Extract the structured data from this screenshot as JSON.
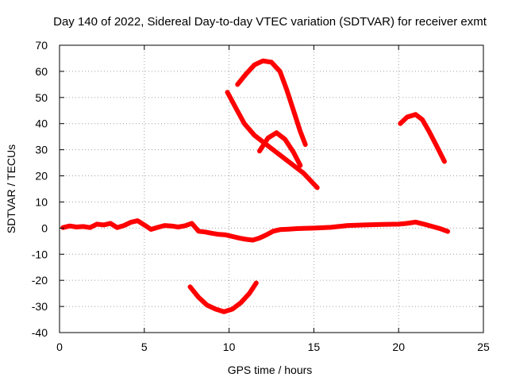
{
  "chart_data": {
    "type": "line",
    "title": "Day 140 of 2022, Sidereal Day-to-day VTEC variation (SDTVAR) for receiver exmt",
    "xlabel": "GPS time / hours",
    "ylabel": "SDTVAR / TECUs",
    "xlim": [
      0,
      25
    ],
    "ylim": [
      -40,
      70
    ],
    "xticks": [
      0,
      5,
      10,
      15,
      20,
      25
    ],
    "yticks": [
      -40,
      -30,
      -20,
      -10,
      0,
      10,
      20,
      30,
      40,
      50,
      60,
      70
    ],
    "grid": true,
    "series_color": "#ff0000",
    "series": [
      {
        "name": "baseline",
        "x": [
          0.2,
          0.6,
          1.0,
          1.4,
          1.8,
          2.2,
          2.6,
          3.0,
          3.4,
          3.8,
          4.2,
          4.6,
          5.0,
          5.4,
          5.8,
          6.2,
          6.6,
          7.0,
          7.4,
          7.8,
          8.2,
          8.6,
          9.0,
          9.4,
          9.8,
          10.2,
          10.6,
          11.0,
          11.4,
          11.8,
          12.2,
          12.6,
          13.0,
          13.5,
          14.0,
          15.0,
          16.0,
          17.0,
          18.0,
          19.0,
          20.0,
          20.5,
          21.0,
          21.5,
          22.0,
          22.5,
          22.9
        ],
        "y": [
          0.2,
          0.8,
          0.4,
          0.6,
          0.2,
          1.5,
          1.2,
          1.8,
          0.2,
          1.0,
          2.2,
          2.8,
          1.2,
          -0.5,
          0.3,
          1.0,
          0.8,
          0.4,
          0.9,
          1.8,
          -1.2,
          -1.5,
          -2.0,
          -2.4,
          -2.6,
          -3.2,
          -3.8,
          -4.3,
          -4.6,
          -3.8,
          -2.6,
          -1.2,
          -0.6,
          -0.4,
          -0.2,
          0.0,
          0.3,
          1.0,
          1.2,
          1.4,
          1.5,
          1.8,
          2.3,
          1.5,
          0.6,
          -0.3,
          -1.3
        ]
      },
      {
        "name": "arc-top",
        "x": [
          10.5,
          11.0,
          11.5,
          12.0,
          12.5,
          13.0,
          13.4,
          13.8,
          14.2,
          14.5
        ],
        "y": [
          55,
          59,
          62.5,
          64,
          63.5,
          60,
          53,
          45,
          37,
          32
        ]
      },
      {
        "name": "arc-descend",
        "x": [
          9.9,
          10.4,
          10.9,
          11.5,
          12.2,
          12.9,
          13.6,
          14.4,
          15.2
        ],
        "y": [
          52,
          46,
          40,
          35.5,
          32,
          28.5,
          25,
          21,
          15.5
        ]
      },
      {
        "name": "arc-mid",
        "x": [
          11.8,
          12.3,
          12.8,
          13.3,
          13.8,
          14.2
        ],
        "y": [
          29.5,
          34.5,
          36.5,
          34,
          29,
          24
        ]
      },
      {
        "name": "arc-right",
        "x": [
          20.1,
          20.5,
          21.0,
          21.4,
          21.8,
          22.2,
          22.7
        ],
        "y": [
          40,
          42.5,
          43.5,
          41.5,
          37,
          32,
          25.5
        ]
      },
      {
        "name": "arc-negative",
        "x": [
          7.7,
          8.2,
          8.7,
          9.2,
          9.7,
          10.2,
          10.7,
          11.2,
          11.6
        ],
        "y": [
          -22.5,
          -26.5,
          -29.5,
          -31,
          -32,
          -31,
          -28.5,
          -25,
          -21
        ]
      }
    ]
  }
}
